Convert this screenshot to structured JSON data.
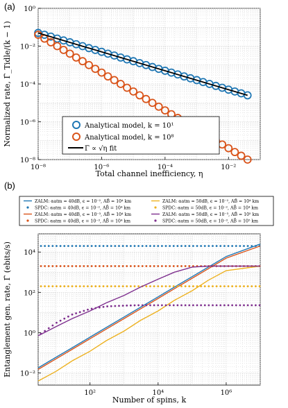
{
  "chart_data": [
    {
      "panel": "(a)",
      "type": "scatter",
      "xlabel": "Total channel inefficiency, η",
      "ylabel": "Normalized rate, Γ̄_Tidle/(k − 1)",
      "xscale": "log",
      "yscale": "log",
      "xlim": [
        1e-08,
        0.1
      ],
      "ylim": [
        1e-08,
        1
      ],
      "xticks": [
        "10⁻⁸",
        "10⁻⁶",
        "10⁻⁴",
        "10⁻²"
      ],
      "yticks": [
        "10⁰",
        "10⁻²",
        "10⁻⁴",
        "10⁻⁶",
        "10⁻⁸"
      ],
      "grid": true,
      "legend_position": "lower-left",
      "series": [
        {
          "name": "Analytical model, k = 10¹",
          "color": "#1f77b4",
          "marker": "circle",
          "x": [
            1e-08,
            1.58e-08,
            2.51e-08,
            3.98e-08,
            6.31e-08,
            1e-07,
            1.58e-07,
            2.51e-07,
            3.98e-07,
            6.31e-07,
            1e-06,
            1.58e-06,
            2.51e-06,
            3.98e-06,
            6.31e-06,
            1e-05,
            1.58e-05,
            2.51e-05,
            3.98e-05,
            6.31e-05,
            0.0001,
            0.000158,
            0.000251,
            0.000398,
            0.000631,
            0.001,
            0.00158,
            0.00251,
            0.00398,
            0.00631,
            0.01,
            0.0158,
            0.0251,
            0.0398
          ],
          "y": [
            0.05,
            0.04,
            0.032,
            0.025,
            0.02,
            0.016,
            0.0126,
            0.01,
            0.0079,
            0.0063,
            0.005,
            0.004,
            0.0032,
            0.0025,
            0.002,
            0.0016,
            0.00126,
            0.001,
            0.00079,
            0.00063,
            0.0005,
            0.0004,
            0.00032,
            0.00025,
            0.0002,
            0.00016,
            0.000126,
            0.0001,
            7.9e-05,
            6.3e-05,
            5e-05,
            4e-05,
            3.2e-05,
            2.5e-05
          ]
        },
        {
          "name": "Analytical model, k = 10⁸",
          "color": "#d95319",
          "marker": "circle",
          "x": [
            1e-08,
            1.58e-08,
            2.51e-08,
            3.98e-08,
            6.31e-08,
            1e-07,
            1.58e-07,
            2.51e-07,
            3.98e-07,
            6.31e-07,
            1e-06,
            1.58e-06,
            2.51e-06,
            3.98e-06,
            6.31e-06,
            1e-05,
            1.58e-05,
            2.51e-05,
            3.98e-05,
            6.31e-05,
            0.0001,
            0.000158,
            0.000251,
            0.000398,
            0.000631,
            0.001,
            0.00158,
            0.00251,
            0.00398,
            0.00631,
            0.01,
            0.0158,
            0.0251,
            0.0398
          ],
          "y": [
            0.04,
            0.025,
            0.016,
            0.01,
            0.0063,
            0.004,
            0.0025,
            0.0016,
            0.001,
            0.00063,
            0.0004,
            0.00025,
            0.00016,
            0.0001,
            6.3e-05,
            4e-05,
            2.5e-05,
            1.6e-05,
            1e-05,
            6.3e-06,
            4e-06,
            2.5e-06,
            1.6e-06,
            1e-06,
            6.3e-07,
            4e-07,
            2.5e-07,
            1.6e-07,
            1e-07,
            6.3e-08,
            4e-08,
            2.5e-08,
            1.6e-08,
            1e-08
          ]
        },
        {
          "name": "Γ̄ ∝ √η fit",
          "color": "#000000",
          "marker": "line",
          "x": [
            1e-08,
            0.0398
          ],
          "y": [
            0.05,
            2.5e-05
          ]
        }
      ]
    },
    {
      "panel": "(b)",
      "type": "line",
      "xlabel": "Number of spins, k",
      "ylabel": "Entanglement gen. rate, Γ̄ (ebits/s)",
      "xscale": "log",
      "yscale": "log",
      "xlim": [
        3,
        10000000.0
      ],
      "ylim": [
        0.0025,
        80000
      ],
      "xticks": [
        "10²",
        "10⁴",
        "10⁶"
      ],
      "yticks": [
        "10⁴",
        "10²",
        "10⁰",
        "10⁻²"
      ],
      "grid": true,
      "legend_position": "top-outside",
      "series": [
        {
          "name": "ZALM: αatm = 40dB, ϵ = 10⁻², AB̄ = 10⁴ km",
          "color": "#1f77b4",
          "style": "solid",
          "x": [
            3,
            10,
            30,
            100,
            300,
            1000,
            3000,
            10000,
            30000,
            100000,
            300000,
            1000000,
            10000000
          ],
          "y": [
            0.018,
            0.06,
            0.18,
            0.6,
            1.8,
            6,
            18,
            60,
            180,
            600,
            1800,
            6000,
            25000
          ]
        },
        {
          "name": "SPDC: αatm = 40dB, ϵ = 10⁻², AB̄ = 10⁴ km",
          "color": "#1f77b4",
          "style": "dotted",
          "x": [
            3,
            10,
            30,
            100,
            300,
            1000,
            3000,
            10000,
            30000,
            100000,
            300000,
            1000000,
            10000000
          ],
          "y": [
            20000,
            20000,
            20000,
            20000,
            20000,
            20000,
            20000,
            20000,
            20000,
            20000,
            20000,
            20000,
            20000
          ]
        },
        {
          "name": "ZALM: αatm = 40dB, ϵ = 10⁻³, AB̄ = 10⁴ km",
          "color": "#d95319",
          "style": "solid",
          "x": [
            3,
            10,
            30,
            100,
            300,
            1000,
            3000,
            10000,
            30000,
            100000,
            300000,
            1000000,
            10000000
          ],
          "y": [
            0.015,
            0.05,
            0.15,
            0.5,
            1.5,
            5,
            15,
            50,
            150,
            500,
            1500,
            5000,
            20000
          ]
        },
        {
          "name": "SPDC: αatm = 40dB, ϵ = 10⁻³, AB̄ = 10⁴ km",
          "color": "#d95319",
          "style": "dotted",
          "x": [
            3,
            10,
            30,
            100,
            300,
            1000,
            3000,
            10000,
            30000,
            100000,
            300000,
            1000000,
            10000000
          ],
          "y": [
            2000,
            2000,
            2000,
            2000,
            2000,
            2000,
            2000,
            2000,
            2000,
            2000,
            2000,
            2000,
            2000
          ]
        },
        {
          "name": "ZALM: αatm = 50dB, ϵ = 10⁻², AB̄ = 10⁴ km",
          "color": "#edb120",
          "style": "solid",
          "x": [
            3,
            10,
            30,
            100,
            300,
            1000,
            3000,
            10000,
            30000,
            100000,
            300000,
            1000000,
            10000000
          ],
          "y": [
            0.004,
            0.012,
            0.04,
            0.12,
            0.4,
            1.2,
            4,
            12,
            40,
            120,
            400,
            1200,
            2000
          ]
        },
        {
          "name": "SPDC: αatm = 50dB, ϵ = 10⁻², AB̄ = 10⁴ km",
          "color": "#edb120",
          "style": "dotted",
          "x": [
            3,
            10,
            30,
            100,
            300,
            1000,
            3000,
            10000,
            30000,
            100000,
            300000,
            1000000,
            10000000
          ],
          "y": [
            200,
            200,
            200,
            200,
            200,
            200,
            200,
            200,
            200,
            200,
            200,
            200,
            200
          ]
        },
        {
          "name": "ZALM: αatm = 50dB, ϵ = 10⁻³, AB̄ = 10⁵ km",
          "color": "#7e2f8e",
          "style": "solid",
          "x": [
            3,
            10,
            30,
            100,
            300,
            1000,
            3000,
            10000,
            30000,
            100000,
            300000,
            1000000,
            10000000
          ],
          "y": [
            0.7,
            2,
            5,
            12,
            30,
            70,
            180,
            450,
            1000,
            1800,
            2000,
            2000,
            2000
          ]
        },
        {
          "name": "SPDC: αatm = 50dB, ϵ = 10⁻³, AB̄ = 10⁵ km",
          "color": "#7e2f8e",
          "style": "dotted",
          "x": [
            3,
            10,
            30,
            100,
            300,
            1000,
            3000,
            10000,
            30000,
            100000,
            300000,
            1000000,
            10000000
          ],
          "y": [
            0.7,
            3,
            8,
            15,
            20,
            22,
            23,
            23,
            23,
            23,
            23,
            23,
            23
          ]
        }
      ]
    }
  ]
}
